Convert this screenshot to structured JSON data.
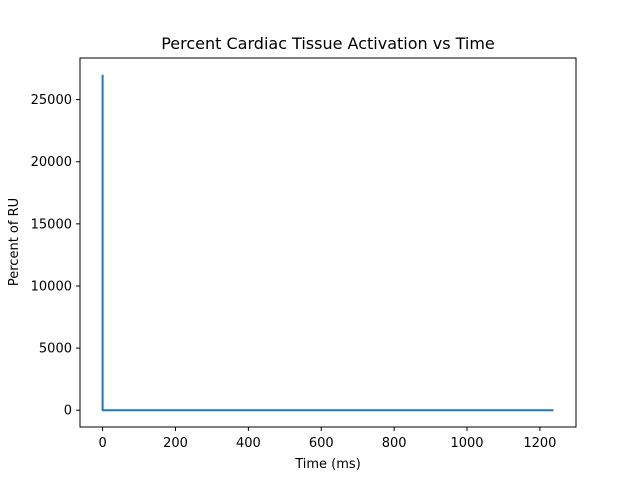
{
  "chart_data": {
    "type": "line",
    "title": "Percent Cardiac Tissue Activation vs Time",
    "xlabel": "Time (ms)",
    "ylabel": "Percent of RU",
    "xlim": [
      -62,
      1299
    ],
    "ylim": [
      -1350,
      28350
    ],
    "x_ticks": [
      0,
      200,
      400,
      600,
      800,
      1000,
      1200
    ],
    "y_ticks": [
      0,
      5000,
      10000,
      15000,
      20000,
      25000
    ],
    "grid": false,
    "series": [
      {
        "color": "#1f77b4",
        "x": [
          0,
          0,
          5,
          1237
        ],
        "y": [
          27000,
          0,
          0,
          0
        ]
      }
    ]
  }
}
